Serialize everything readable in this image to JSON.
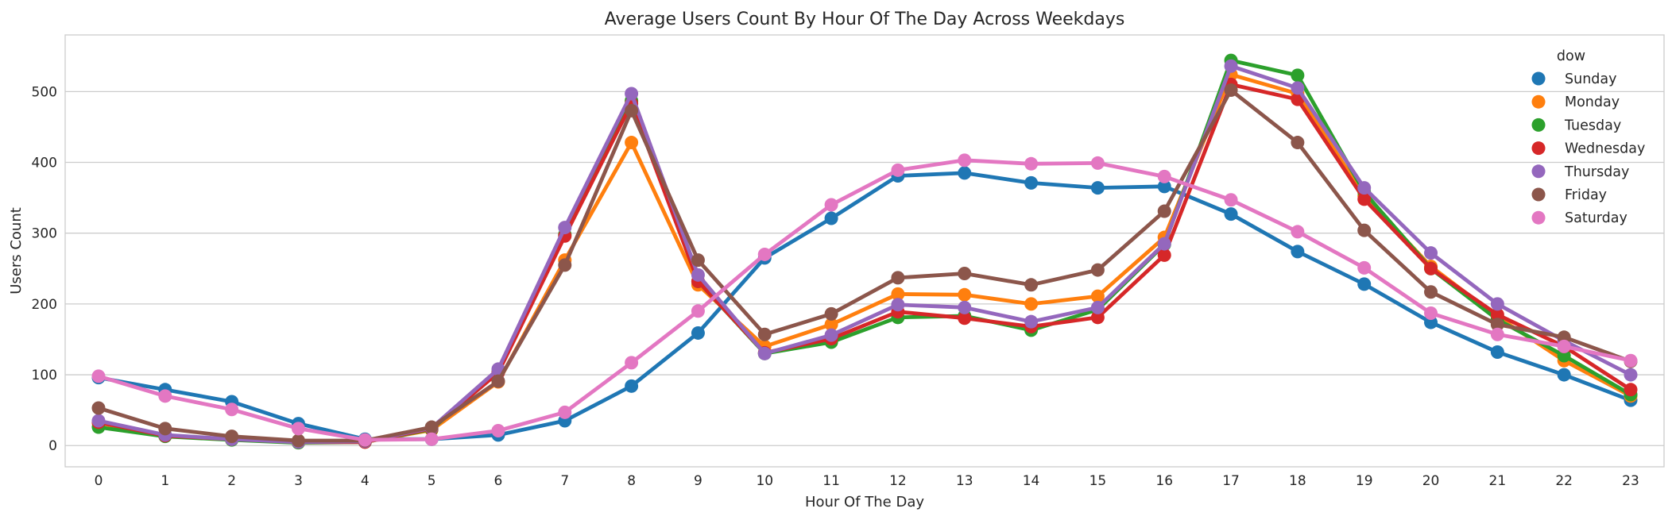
{
  "chart_data": {
    "type": "line",
    "title": "Average Users Count By Hour Of The Day Across Weekdays",
    "xlabel": "Hour Of The Day",
    "ylabel": "Users Count",
    "ylim": [
      -30,
      580
    ],
    "y_ticks": [
      0,
      100,
      200,
      300,
      400,
      500
    ],
    "x": [
      "0",
      "1",
      "2",
      "3",
      "4",
      "5",
      "6",
      "7",
      "8",
      "9",
      "10",
      "11",
      "12",
      "13",
      "14",
      "15",
      "16",
      "17",
      "18",
      "19",
      "20",
      "21",
      "22",
      "23"
    ],
    "grid": "horizontal",
    "legend": {
      "title": "dow",
      "placement": "top-right"
    },
    "series": [
      {
        "name": "Sunday",
        "color": "#1f77b4",
        "values": [
          96,
          79,
          62,
          31,
          9,
          9,
          15,
          35,
          84,
          159,
          265,
          321,
          381,
          385,
          371,
          364,
          366,
          327,
          274,
          228,
          174,
          132,
          100,
          64
        ]
      },
      {
        "name": "Monday",
        "color": "#ff7f0e",
        "values": [
          32,
          14,
          9,
          5,
          5,
          22,
          90,
          262,
          428,
          227,
          140,
          171,
          214,
          213,
          200,
          211,
          294,
          524,
          497,
          353,
          253,
          182,
          120,
          70
        ]
      },
      {
        "name": "Tuesday",
        "color": "#2ca02c",
        "values": [
          26,
          13,
          8,
          4,
          5,
          23,
          104,
          298,
          487,
          232,
          130,
          146,
          181,
          183,
          163,
          192,
          284,
          544,
          523,
          358,
          250,
          178,
          127,
          72
        ]
      },
      {
        "name": "Wednesday",
        "color": "#d62728",
        "values": [
          33,
          14,
          9,
          5,
          5,
          24,
          103,
          296,
          483,
          232,
          131,
          151,
          189,
          180,
          168,
          181,
          269,
          510,
          489,
          348,
          250,
          185,
          140,
          79
        ]
      },
      {
        "name": "Thursday",
        "color": "#9467bd",
        "values": [
          35,
          15,
          9,
          5,
          6,
          25,
          108,
          308,
          497,
          241,
          130,
          156,
          199,
          195,
          175,
          195,
          285,
          536,
          505,
          364,
          272,
          200,
          148,
          100
        ]
      },
      {
        "name": "Friday",
        "color": "#8c564b",
        "values": [
          53,
          24,
          13,
          7,
          7,
          26,
          91,
          255,
          473,
          262,
          157,
          186,
          237,
          243,
          227,
          248,
          331,
          502,
          428,
          304,
          217,
          171,
          153,
          119
        ]
      },
      {
        "name": "Saturday",
        "color": "#e377c2",
        "values": [
          98,
          70,
          51,
          24,
          8,
          9,
          21,
          47,
          117,
          190,
          270,
          340,
          389,
          403,
          398,
          399,
          380,
          347,
          302,
          251,
          187,
          157,
          140,
          120
        ]
      }
    ]
  }
}
